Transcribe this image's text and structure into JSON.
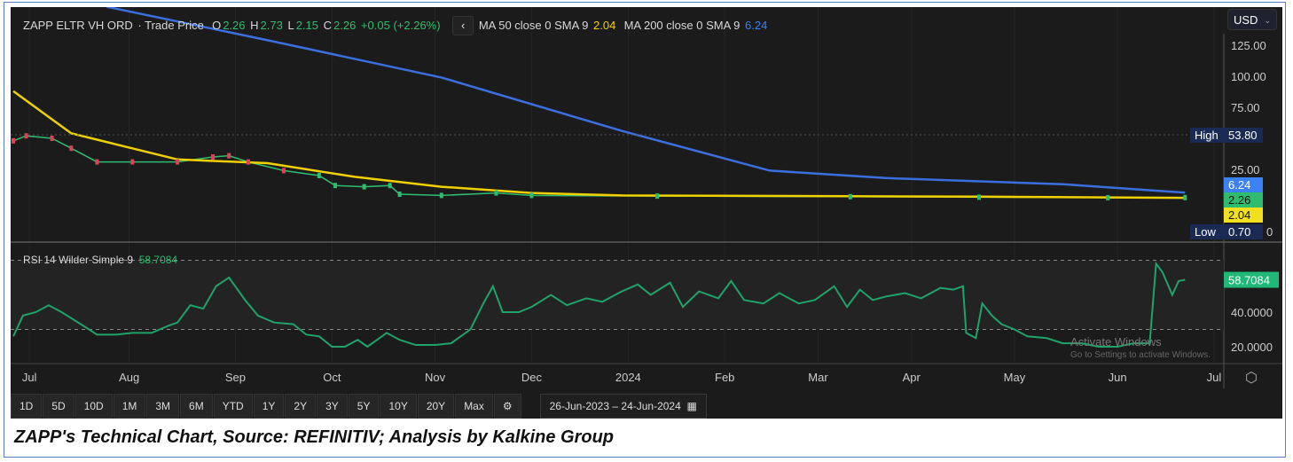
{
  "header": {
    "symbol": "ZAPP ELTR VH ORD",
    "type": "· Trade Price",
    "o_label": "O",
    "o": "2.26",
    "h_label": "H",
    "h": "2.73",
    "l_label": "L",
    "l": "2.15",
    "c_label": "C",
    "c": "2.26",
    "change": "+0.05 (+2.26%)",
    "back": "‹",
    "ma50_label": "MA 50 close 0 SMA 9",
    "ma50": "2.04",
    "ma200_label": "MA 200 close 0 SMA 9",
    "ma200": "6.24"
  },
  "currency": "USD",
  "rsi_header": {
    "label": "RSI 14 Wilder Simple 9",
    "value": "58.7084"
  },
  "footer": {
    "buttons": [
      "1D",
      "5D",
      "10D",
      "1M",
      "3M",
      "6M",
      "YTD",
      "1Y",
      "2Y",
      "3Y",
      "5Y",
      "10Y",
      "20Y",
      "Max"
    ],
    "date_from": "26-Jun-2023",
    "date_sep": "–",
    "date_to": "24-Jun-2024"
  },
  "watermark": {
    "title": "Activate Windows",
    "sub": "Go to Settings to activate Windows."
  },
  "caption": "ZAPP's Technical Chart, Source: REFINITIV; Analysis by Kalkine Group",
  "colors": {
    "bg": "#1b1b1b",
    "price": "#2ebd6e",
    "ma50": "#f0d000",
    "ma200": "#3b6fe0",
    "rsi": "#1fa36a"
  },
  "chart_data": [
    {
      "type": "line",
      "title": "Price",
      "ylabel": "USD",
      "ylim": [
        0,
        130
      ],
      "yticks": [
        "125.00",
        "100.00",
        "75.00",
        "25.00",
        "0"
      ],
      "ytick_values": [
        125,
        100,
        75,
        25,
        0
      ],
      "x_unit": "days since 26-Jun-2023",
      "xlim": [
        0,
        372
      ],
      "xticks": [
        {
          "label": "Jul",
          "day": 5
        },
        {
          "label": "Aug",
          "day": 36
        },
        {
          "label": "Sep",
          "day": 69
        },
        {
          "label": "Oct",
          "day": 99
        },
        {
          "label": "Nov",
          "day": 131
        },
        {
          "label": "Dec",
          "day": 161
        },
        {
          "label": "2024",
          "day": 191
        },
        {
          "label": "Feb",
          "day": 221
        },
        {
          "label": "Mar",
          "day": 250
        },
        {
          "label": "Apr",
          "day": 279
        },
        {
          "label": "May",
          "day": 311
        },
        {
          "label": "Jun",
          "day": 343
        },
        {
          "label": "Jul",
          "day": 373
        }
      ],
      "series": [
        {
          "name": "Trade Price",
          "points": [
            [
              0,
              48
            ],
            [
              4,
              52
            ],
            [
              12,
              50
            ],
            [
              18,
              42
            ],
            [
              26,
              31
            ],
            [
              37,
              31
            ],
            [
              51,
              31
            ],
            [
              62,
              35
            ],
            [
              67,
              36
            ],
            [
              73,
              31
            ],
            [
              84,
              24
            ],
            [
              95,
              20
            ],
            [
              100,
              12
            ],
            [
              109,
              11
            ],
            [
              117,
              12
            ],
            [
              120,
              5
            ],
            [
              133,
              4
            ],
            [
              150,
              6
            ],
            [
              161,
              4
            ],
            [
              200,
              3.5
            ],
            [
              260,
              3
            ],
            [
              300,
              2.6
            ],
            [
              340,
              2.2
            ],
            [
              364,
              2.26
            ]
          ]
        },
        {
          "name": "MA 50",
          "points": [
            [
              0,
              88
            ],
            [
              18,
              54
            ],
            [
              51,
              33
            ],
            [
              79,
              30
            ],
            [
              106,
              19
            ],
            [
              133,
              11
            ],
            [
              161,
              6
            ],
            [
              189,
              4
            ],
            [
              250,
              3.5
            ],
            [
              300,
              3
            ],
            [
              364,
              2.04
            ]
          ]
        },
        {
          "name": "MA 200",
          "points": [
            [
              29,
              156
            ],
            [
              79,
              129
            ],
            [
              133,
              99
            ],
            [
              189,
              56
            ],
            [
              235,
              24
            ],
            [
              271,
              18
            ],
            [
              326,
              13
            ],
            [
              364,
              6.24
            ]
          ]
        }
      ],
      "labels": {
        "high_label": "High",
        "high": "53.80",
        "low_label": "Low",
        "low": "0.70",
        "last_ma200": "6.24",
        "last_price": "2.26",
        "last_ma50": "2.04"
      }
    },
    {
      "type": "line",
      "title": "RSI 14 Wilder Simple 9",
      "ylim": [
        0,
        75
      ],
      "yticks": [
        "40.0000",
        "20.0000"
      ],
      "ytick_values": [
        40,
        20
      ],
      "bands": [
        30,
        70
      ],
      "last": "58.7084",
      "points": [
        [
          0,
          26
        ],
        [
          3,
          38
        ],
        [
          7,
          40
        ],
        [
          11,
          44
        ],
        [
          15,
          40
        ],
        [
          21,
          33
        ],
        [
          26,
          27
        ],
        [
          32,
          27
        ],
        [
          37,
          28
        ],
        [
          43,
          28
        ],
        [
          48,
          32
        ],
        [
          51,
          34
        ],
        [
          55,
          44
        ],
        [
          59,
          42
        ],
        [
          63,
          55
        ],
        [
          67,
          60
        ],
        [
          72,
          47
        ],
        [
          76,
          38
        ],
        [
          81,
          34
        ],
        [
          87,
          33
        ],
        [
          91,
          27
        ],
        [
          95,
          26
        ],
        [
          99,
          20
        ],
        [
          103,
          20
        ],
        [
          107,
          24
        ],
        [
          110,
          20
        ],
        [
          116,
          28
        ],
        [
          120,
          24
        ],
        [
          125,
          21
        ],
        [
          131,
          21
        ],
        [
          136,
          22
        ],
        [
          142,
          30
        ],
        [
          146,
          45
        ],
        [
          149,
          55
        ],
        [
          152,
          40
        ],
        [
          157,
          40
        ],
        [
          161,
          43
        ],
        [
          167,
          50
        ],
        [
          172,
          44
        ],
        [
          178,
          48
        ],
        [
          183,
          46
        ],
        [
          189,
          52
        ],
        [
          194,
          56
        ],
        [
          198,
          50
        ],
        [
          204,
          57
        ],
        [
          208,
          43
        ],
        [
          213,
          52
        ],
        [
          219,
          48
        ],
        [
          223,
          58
        ],
        [
          227,
          47
        ],
        [
          233,
          45
        ],
        [
          238,
          51
        ],
        [
          244,
          45
        ],
        [
          249,
          47
        ],
        [
          255,
          55
        ],
        [
          259,
          43
        ],
        [
          263,
          53
        ],
        [
          267,
          47
        ],
        [
          271,
          49
        ],
        [
          277,
          51
        ],
        [
          282,
          48
        ],
        [
          288,
          54
        ],
        [
          292,
          53
        ],
        [
          295,
          55
        ],
        [
          296,
          28
        ],
        [
          299,
          25
        ],
        [
          301,
          45
        ],
        [
          304,
          38
        ],
        [
          307,
          33
        ],
        [
          311,
          30
        ],
        [
          315,
          26
        ],
        [
          321,
          25
        ],
        [
          326,
          22
        ],
        [
          332,
          22
        ],
        [
          337,
          20
        ],
        [
          343,
          20
        ],
        [
          348,
          22
        ],
        [
          353,
          22
        ],
        [
          355,
          68
        ],
        [
          357,
          63
        ],
        [
          360,
          50
        ],
        [
          362,
          58
        ],
        [
          364,
          58.7
        ]
      ]
    }
  ]
}
